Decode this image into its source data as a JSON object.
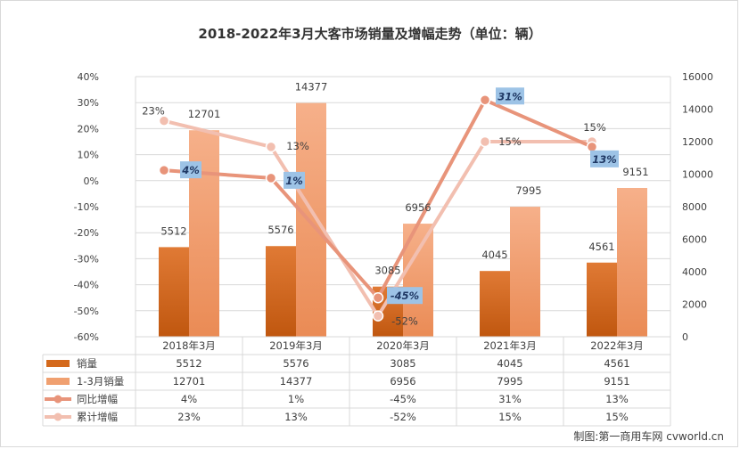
{
  "chart_data": {
    "type": "bar",
    "title": "2018-2022年3月大客市场销量及增幅走势（单位：辆）",
    "categories": [
      "2018年3月",
      "2019年3月",
      "2020年3月",
      "2021年3月",
      "2022年3月"
    ],
    "series": [
      {
        "name": "销量",
        "type": "bar",
        "axis": "right",
        "values": [
          5512,
          5576,
          3085,
          4045,
          4561
        ],
        "color": "#d4691c"
      },
      {
        "name": "1-3月销量",
        "type": "bar",
        "axis": "right",
        "values": [
          12701,
          14377,
          6956,
          7995,
          9151
        ],
        "color": "#f0a070"
      },
      {
        "name": "同比增幅",
        "type": "line",
        "axis": "left",
        "values": [
          4,
          1,
          -45,
          31,
          13
        ],
        "labels": [
          "4%",
          "1%",
          "-45%",
          "31%",
          "13%"
        ],
        "color": "#e8947a"
      },
      {
        "name": "累计增幅",
        "type": "line",
        "axis": "left",
        "values": [
          23,
          13,
          -52,
          15,
          15
        ],
        "labels": [
          "23%",
          "13%",
          "-52%",
          "15%",
          "15%"
        ],
        "color": "#f2bfb0"
      }
    ],
    "left_axis": {
      "min": -60,
      "max": 40,
      "step": 10,
      "tick_labels": [
        "40%",
        "30%",
        "20%",
        "10%",
        "0%",
        "-10%",
        "-20%",
        "-30%",
        "-40%",
        "-50%",
        "-60%"
      ]
    },
    "right_axis": {
      "min": 0,
      "max": 16000,
      "step": 2000,
      "tick_labels": [
        "16000",
        "14000",
        "12000",
        "10000",
        "8000",
        "6000",
        "4000",
        "2000",
        "0"
      ]
    },
    "grid": true,
    "legend": "data-table-below",
    "data_table": {
      "rows": [
        {
          "label": "销量",
          "cells": [
            "5512",
            "5576",
            "3085",
            "4045",
            "4561"
          ]
        },
        {
          "label": "1-3月销量",
          "cells": [
            "12701",
            "14377",
            "6956",
            "7995",
            "9151"
          ]
        },
        {
          "label": "同比增幅",
          "cells": [
            "4%",
            "1%",
            "-45%",
            "31%",
            "13%"
          ]
        },
        {
          "label": "累计增幅",
          "cells": [
            "23%",
            "13%",
            "-52%",
            "15%",
            "15%"
          ]
        }
      ]
    },
    "callout_color": "#9dc3e6"
  },
  "source": "制图:第一商用车网 cvworld.cn"
}
